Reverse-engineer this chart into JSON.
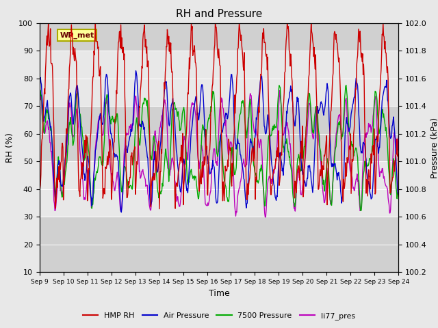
{
  "title": "RH and Pressure",
  "xlabel": "Time",
  "ylabel_left": "RH (%)",
  "ylabel_right": "Pressure (kPa)",
  "ylim_left": [
    10,
    100
  ],
  "ylim_right": [
    100.2,
    102.0
  ],
  "yticks_left": [
    10,
    20,
    30,
    40,
    50,
    60,
    70,
    80,
    90,
    100
  ],
  "yticks_right": [
    100.2,
    100.4,
    100.6,
    100.8,
    101.0,
    101.2,
    101.4,
    101.6,
    101.8,
    102.0
  ],
  "colors": {
    "HMP_RH": "#cc0000",
    "Air_Pressure": "#0000cc",
    "7500_Pressure": "#00aa00",
    "li77_pres": "#bb00bb"
  },
  "legend_labels": [
    "HMP RH",
    "Air Pressure",
    "7500 Pressure",
    "li77_pres"
  ],
  "annotation_text": "WP_met",
  "annotation_box_facecolor": "#ffff99",
  "annotation_box_edgecolor": "#aaaa00",
  "fig_facecolor": "#e8e8e8",
  "band_colors": [
    "#d0d0d0",
    "#e8e8e8"
  ],
  "grid_line_color": "#ffffff"
}
